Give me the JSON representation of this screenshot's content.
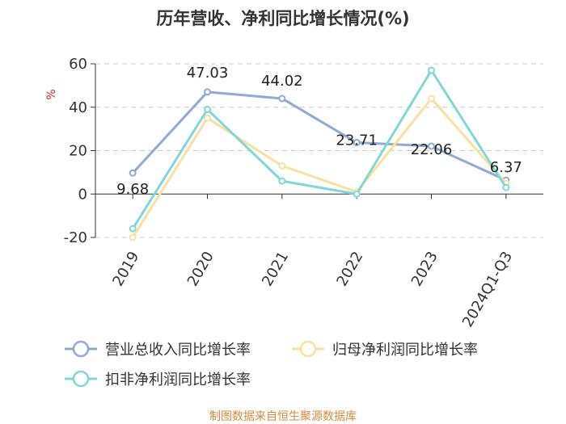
{
  "chart_data": {
    "type": "line",
    "title": "历年营收、净利同比增长情况(%)",
    "ylabel": "%",
    "xlabel": "",
    "categories": [
      "2019",
      "2020",
      "2021",
      "2022",
      "2023",
      "2024Q1-Q3"
    ],
    "ylim": [
      -20,
      60
    ],
    "yticks": [
      60,
      40,
      20,
      0,
      -20
    ],
    "grid": true,
    "legend_position": "bottom",
    "series": [
      {
        "name": "营业总收入同比增长率",
        "color": "#8eaad6",
        "values": [
          9.68,
          47.03,
          44.02,
          23.71,
          22.06,
          6.37
        ],
        "labels": [
          "9.68",
          "47.03",
          "44.02",
          "23.71",
          "22.06",
          "6.37"
        ]
      },
      {
        "name": "归母净利润同比增长率",
        "color": "#fbdf9f",
        "values": [
          -20,
          35,
          13,
          1,
          44,
          5
        ]
      },
      {
        "name": "扣非净利润同比增长率",
        "color": "#7fd8d8",
        "values": [
          -16,
          39,
          6,
          0,
          57,
          3
        ]
      }
    ]
  },
  "source": "制图数据来自恒生聚源数据库"
}
